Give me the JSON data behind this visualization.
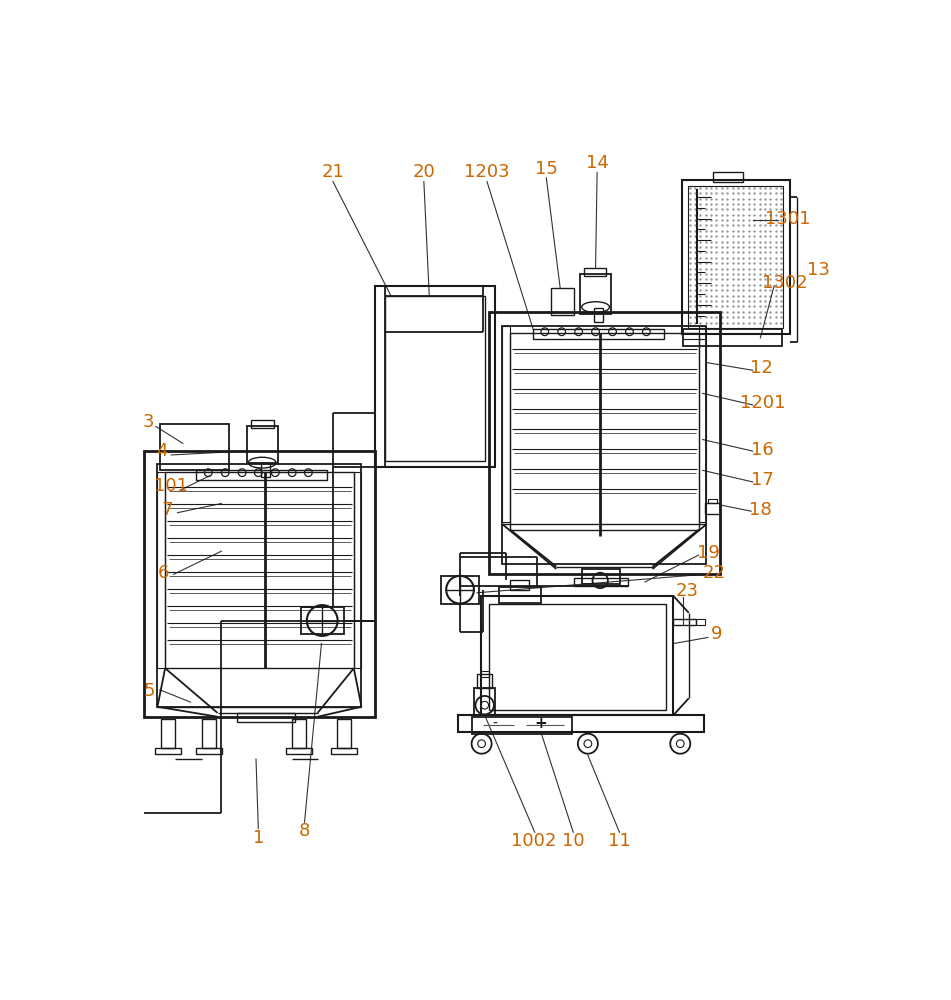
{
  "bg_color": "#ffffff",
  "line_color": "#1a1a1a",
  "ref_color": "#cc6600",
  "figsize": [
    9.51,
    10.0
  ],
  "dpi": 100
}
